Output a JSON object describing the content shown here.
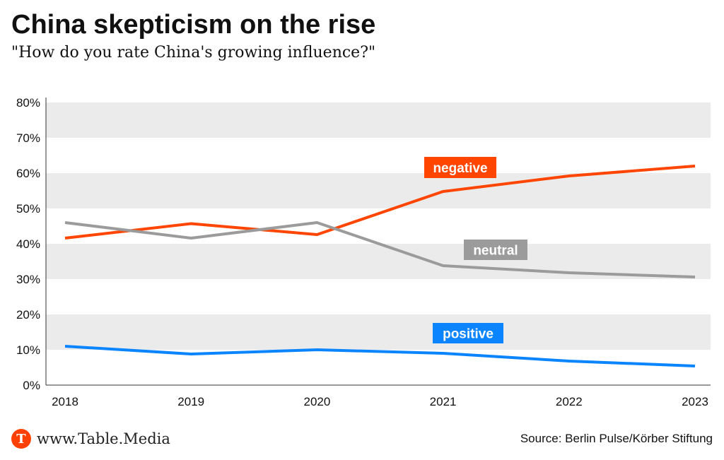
{
  "header": {
    "title": "China skepticism on the rise",
    "subtitle": "\"How do you rate China's growing influence?\""
  },
  "footer": {
    "brand": "www.Table.Media",
    "logo_letter": "T",
    "source": "Source: Berlin Pulse/Körber Stiftung"
  },
  "chart_data": {
    "type": "line",
    "title": "China skepticism on the rise",
    "x": [
      "2018",
      "2019",
      "2020",
      "2021",
      "2022",
      "2023"
    ],
    "ylim": [
      0,
      80
    ],
    "yticks": [
      "0%",
      "10%",
      "20%",
      "30%",
      "40%",
      "50%",
      "60%",
      "70%",
      "80%"
    ],
    "series": [
      {
        "name": "negative",
        "color": "#ff4500",
        "values": [
          41.6,
          45.7,
          42.6,
          54.8,
          59.2,
          62
        ]
      },
      {
        "name": "neutral",
        "color": "#9b9b9b",
        "values": [
          46,
          41.6,
          46,
          33.8,
          31.8,
          30.6
        ]
      },
      {
        "name": "positive",
        "color": "#0a84ff",
        "values": [
          11,
          8.8,
          10,
          9,
          6.8,
          5.4
        ]
      }
    ]
  }
}
